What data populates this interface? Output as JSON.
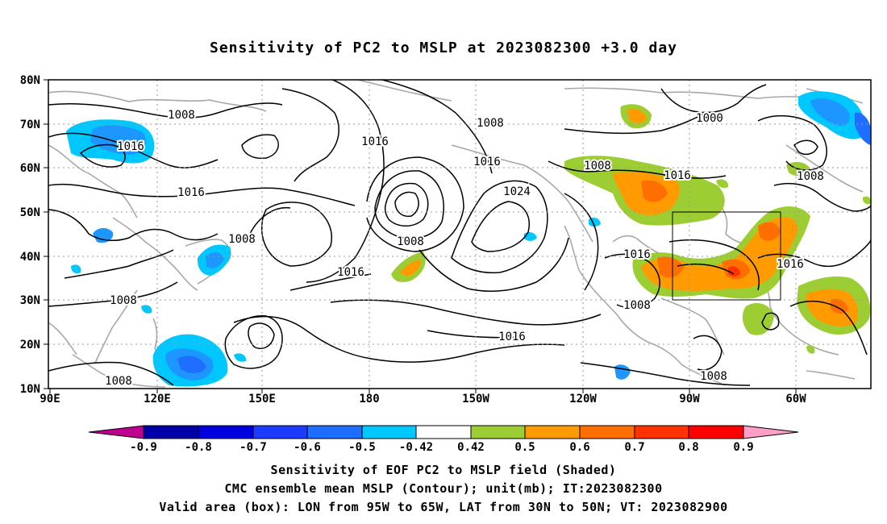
{
  "title": "Sensitivity of PC2 to MSLP at 2023082300 +3.0 day",
  "lat_ticks": [
    "80N",
    "70N",
    "60N",
    "50N",
    "40N",
    "30N",
    "20N",
    "10N"
  ],
  "lon_ticks": [
    "90E",
    "120E",
    "150E",
    "180",
    "150W",
    "120W",
    "90W",
    "60W"
  ],
  "contour_labels": [
    "1008",
    "1008",
    "1016",
    "1016",
    "1008",
    "1016",
    "1008",
    "1016",
    "1016",
    "1024",
    "1008",
    "1016",
    "1000",
    "1008",
    "1016",
    "1008",
    "1016",
    "1016",
    "1008",
    "1008",
    "1016",
    "1008"
  ],
  "colorbar": {
    "labels": [
      "-0.9",
      "-0.8",
      "-0.7",
      "-0.6",
      "-0.5",
      "-0.42",
      "0.42",
      "0.5",
      "0.6",
      "0.7",
      "0.8",
      "0.9"
    ],
    "colors": [
      "#c0008f",
      "#0000a8",
      "#0000e0",
      "#1e3cff",
      "#1e6eff",
      "#1e96ff",
      "#00c8ff",
      "#ffffff",
      "#9ccd32",
      "#ff9b00",
      "#ff6e00",
      "#ff3200",
      "#ff0000",
      "#ff9ec8"
    ]
  },
  "shade_colors": {
    "neg_light": "#00c8ff",
    "neg_mid": "#1e96ff",
    "neg_dark": "#1e6eff",
    "neg_deep": "#1e3cff",
    "pos_green": "#9ccd32",
    "pos_orange": "#ff9b00",
    "pos_dark": "#ff6e00",
    "pos_red": "#ff0000"
  },
  "captions": {
    "line1": "Sensitivity of EOF PC2 to MSLP field (Shaded)",
    "line2": "CMC ensemble mean MSLP (Contour); unit(mb); IT:2023082300",
    "line3": "Valid area (box): LON from 95W to 65W, LAT from 30N to 50N; VT: 2023082900"
  }
}
